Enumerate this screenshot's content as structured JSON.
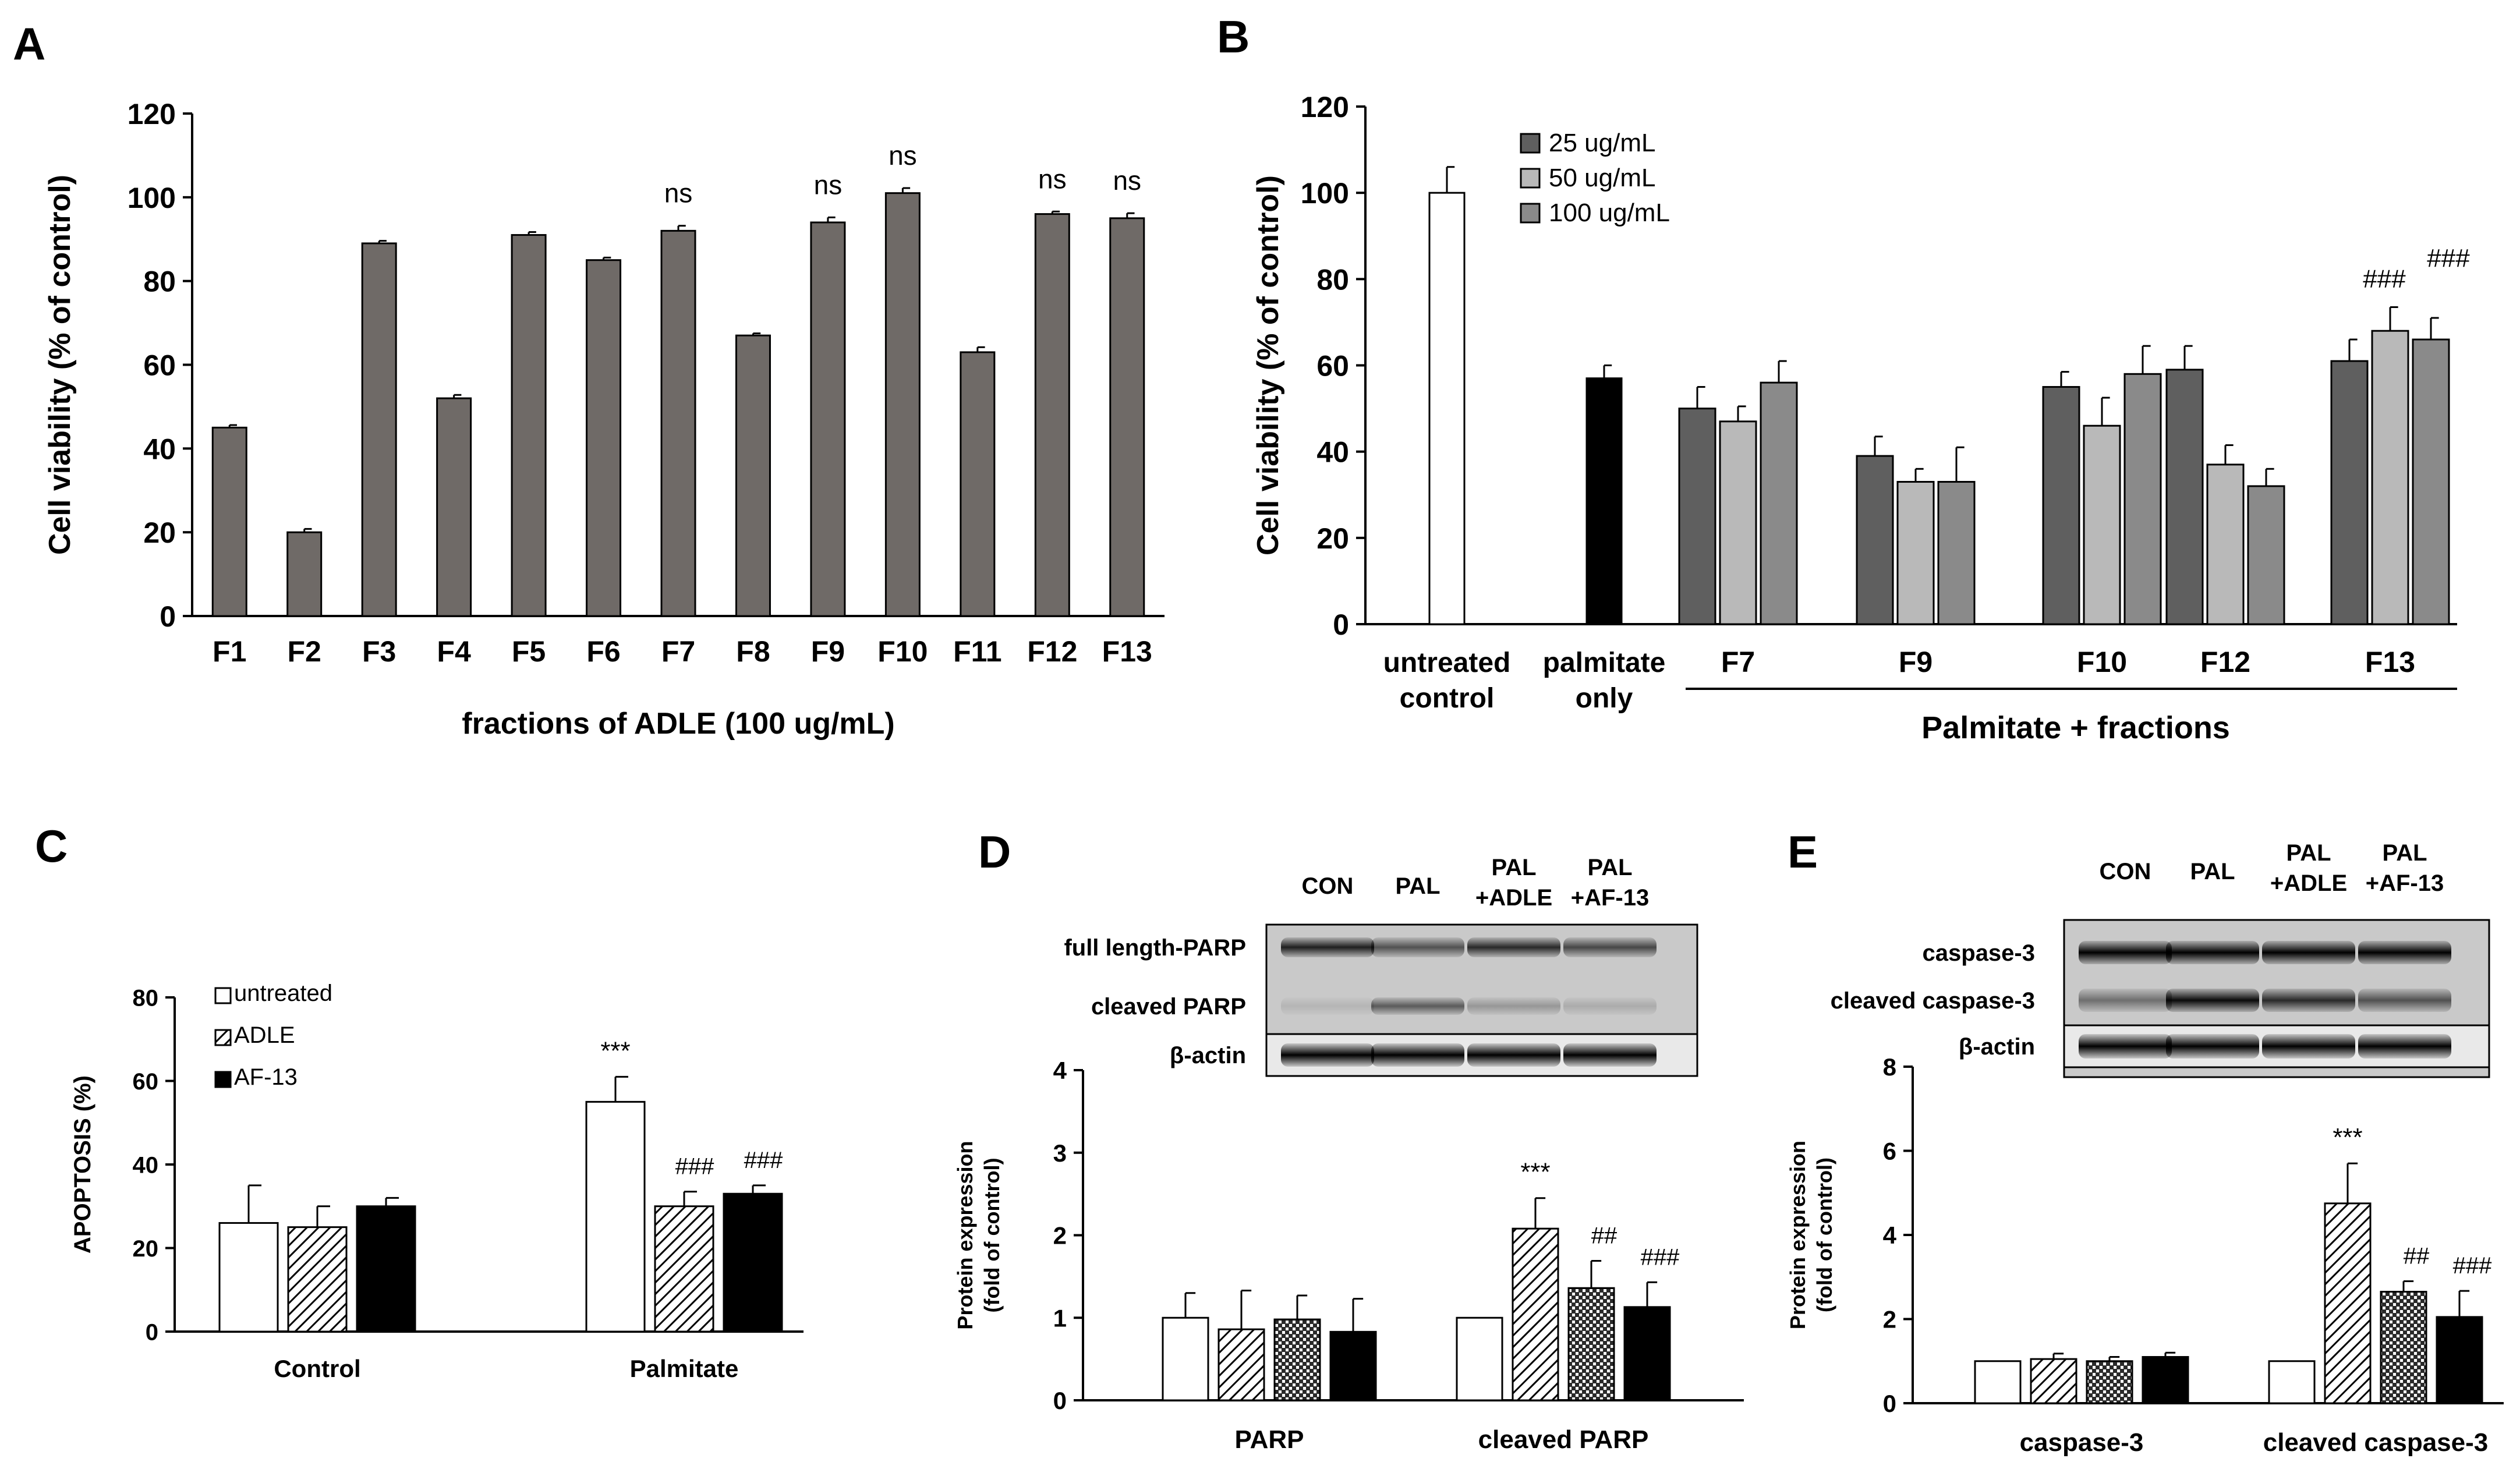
{
  "colors": {
    "axis": "#000000",
    "panel_a_bar": "#6f6a67",
    "dose_25": "#5f5f5f",
    "dose_50": "#b9b9b9",
    "dose_100": "#8a8a8a",
    "palmitate_only": "#000000",
    "untreated": "#ffffff",
    "blot_bg": "#c9c9c9",
    "hash_text": "#555555"
  },
  "chart_data": [
    {
      "panel": "A",
      "type": "bar",
      "title": "",
      "xlabel": "fractions of ADLE (100 ug/mL)",
      "ylabel": "Cell viability (% of control)",
      "ylim": [
        0,
        120
      ],
      "yticks": [
        "0",
        "20",
        "40",
        "60",
        "80",
        "100",
        "120"
      ],
      "categories": [
        "F1",
        "F2",
        "F3",
        "F4",
        "F5",
        "F6",
        "F7",
        "F8",
        "F9",
        "F10",
        "F11",
        "F12",
        "F13"
      ],
      "values": [
        45,
        20,
        89,
        52,
        91,
        85,
        92,
        67,
        94,
        101,
        63,
        96,
        95
      ],
      "errors": [
        0.6,
        0.8,
        0.6,
        0.8,
        0.7,
        0.6,
        1.2,
        0.5,
        1.2,
        1.2,
        1.2,
        0.6,
        1.2
      ],
      "annotations": [
        "",
        "",
        "",
        "",
        "",
        "",
        "ns",
        "",
        "ns",
        "ns",
        "",
        "ns",
        "ns"
      ]
    },
    {
      "panel": "B",
      "type": "bar",
      "xlabel": "Palmitate + fractions",
      "ylabel": "Cell viability (% of control)",
      "ylim": [
        0,
        120
      ],
      "yticks": [
        "0",
        "20",
        "40",
        "60",
        "80",
        "100",
        "120"
      ],
      "legend": [
        "25 ug/mL",
        "50 ug/mL",
        "100 ug/mL"
      ],
      "controls": [
        {
          "label_lines": [
            "untreated",
            "control"
          ],
          "value": 100,
          "error": 6,
          "style": "untreated"
        },
        {
          "label_lines": [
            "palmitate",
            "only"
          ],
          "value": 57,
          "error": 3,
          "style": "palmitate_only"
        }
      ],
      "categories": [
        "F7",
        "F9",
        "F10",
        "F12",
        "F13"
      ],
      "series": [
        {
          "name": "25 ug/mL",
          "values": [
            50,
            39,
            55,
            59,
            61
          ],
          "errors": [
            5,
            4.5,
            3.5,
            5.5,
            5
          ]
        },
        {
          "name": "50 ug/mL",
          "values": [
            47,
            33,
            46,
            37,
            68
          ],
          "errors": [
            3.5,
            3,
            6.5,
            4.5,
            5.5
          ]
        },
        {
          "name": "100 ug/mL",
          "values": [
            56,
            33,
            58,
            32,
            66
          ],
          "errors": [
            5,
            8,
            6.5,
            4,
            5
          ]
        }
      ],
      "annotations": [
        {
          "category": "F13",
          "series": 1,
          "text": "###"
        },
        {
          "category": "F13",
          "series": 2,
          "text": "###"
        }
      ]
    },
    {
      "panel": "C",
      "type": "bar",
      "ylabel": "APOPTOSIS (%)",
      "ylim": [
        0,
        80
      ],
      "yticks": [
        "0",
        "20",
        "40",
        "60",
        "80"
      ],
      "legend": [
        "untreated",
        "ADLE",
        "AF-13"
      ],
      "categories": [
        "Control",
        "Palmitate"
      ],
      "series": [
        {
          "name": "untreated",
          "values": [
            26,
            55
          ],
          "errors": [
            9,
            6
          ]
        },
        {
          "name": "ADLE",
          "values": [
            25,
            30
          ],
          "errors": [
            5,
            3.5
          ]
        },
        {
          "name": "AF-13",
          "values": [
            30,
            33
          ],
          "errors": [
            2,
            2
          ]
        }
      ],
      "annotations": [
        {
          "category": "Palmitate",
          "series": 0,
          "text": "***"
        },
        {
          "category": "Palmitate",
          "series": 1,
          "text": "###"
        },
        {
          "category": "Palmitate",
          "series": 2,
          "text": "###"
        }
      ]
    },
    {
      "panel": "D",
      "type": "bar",
      "ylabel_lines": [
        "Protein expression",
        "(fold of control)"
      ],
      "ylim": [
        0,
        4
      ],
      "yticks": [
        "0",
        "1",
        "2",
        "3",
        "4"
      ],
      "categories": [
        "PARP",
        "cleaved PARP"
      ],
      "series": [
        {
          "name": "CON",
          "values": [
            1.0,
            1.0
          ],
          "errors": [
            0.3,
            0.0
          ]
        },
        {
          "name": "PAL",
          "values": [
            0.86,
            2.08
          ],
          "errors": [
            0.47,
            0.37
          ]
        },
        {
          "name": "PAL+ADLE",
          "values": [
            0.98,
            1.36
          ],
          "errors": [
            0.29,
            0.33
          ]
        },
        {
          "name": "PAL+AF-13",
          "values": [
            0.83,
            1.13
          ],
          "errors": [
            0.4,
            0.3
          ]
        }
      ],
      "annotations": [
        {
          "category": "cleaved PARP",
          "series": 1,
          "text": "***"
        },
        {
          "category": "cleaved PARP",
          "series": 2,
          "text": "##"
        },
        {
          "category": "cleaved PARP",
          "series": 3,
          "text": "###"
        }
      ],
      "blot": {
        "lanes": [
          {
            "top": "CON",
            "bottom": ""
          },
          {
            "top": "PAL",
            "bottom": ""
          },
          {
            "top": "PAL",
            "bottom": "+ADLE"
          },
          {
            "top": "PAL",
            "bottom": "+AF-13"
          }
        ],
        "rows": [
          "full length-PARP",
          "cleaved PARP",
          "β-actin"
        ]
      }
    },
    {
      "panel": "E",
      "type": "bar",
      "ylabel_lines": [
        "Protein expression",
        "(fold of control)"
      ],
      "ylim": [
        0,
        8
      ],
      "yticks": [
        "0",
        "2",
        "4",
        "6",
        "8"
      ],
      "categories": [
        "caspase-3",
        "cleaved caspase-3"
      ],
      "series": [
        {
          "name": "CON",
          "values": [
            1.0,
            1.0
          ],
          "errors": [
            0.0,
            0.0
          ]
        },
        {
          "name": "PAL",
          "values": [
            1.05,
            4.75
          ],
          "errors": [
            0.13,
            0.95
          ]
        },
        {
          "name": "PAL+ADLE",
          "values": [
            1.0,
            2.65
          ],
          "errors": [
            0.1,
            0.25
          ]
        },
        {
          "name": "PAL+AF-13",
          "values": [
            1.1,
            2.05
          ],
          "errors": [
            0.1,
            0.62
          ]
        }
      ],
      "annotations": [
        {
          "category": "cleaved caspase-3",
          "series": 1,
          "text": "***"
        },
        {
          "category": "cleaved caspase-3",
          "series": 2,
          "text": "##"
        },
        {
          "category": "cleaved caspase-3",
          "series": 3,
          "text": "###"
        }
      ],
      "blot": {
        "lanes": [
          {
            "top": "CON",
            "bottom": ""
          },
          {
            "top": "PAL",
            "bottom": ""
          },
          {
            "top": "PAL",
            "bottom": "+ADLE"
          },
          {
            "top": "PAL",
            "bottom": "+AF-13"
          }
        ],
        "rows": [
          "caspase-3",
          "cleaved caspase-3",
          "β-actin"
        ]
      }
    }
  ]
}
